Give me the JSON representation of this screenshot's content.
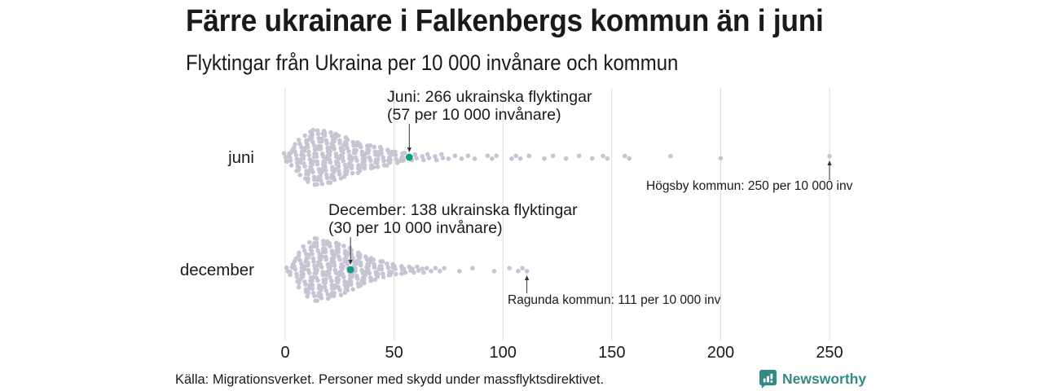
{
  "title": "Färre ukrainare i Falkenbergs kommun än i juni",
  "subtitle": "Flyktingar från Ukraina per 10 000 invånare och kommun",
  "source": "Källa: Migrationsverket. Personer med skydd under massflyktsdirektivet.",
  "brand": {
    "name": "Newsworthy",
    "color": "#338a85"
  },
  "colors": {
    "dot": "#c7c4d4",
    "highlight": "#0e9c85",
    "grid": "#d9d9d9",
    "text": "#1a1a1a",
    "arrow": "#333333"
  },
  "chart_data": {
    "type": "beeswarm",
    "xlabel": "",
    "unit": "flyktingar per 10 000 invånare",
    "xlim": [
      0,
      250
    ],
    "x_ticks": [
      0,
      50,
      100,
      150,
      200,
      250
    ],
    "rows": [
      {
        "label": "juni",
        "highlight": {
          "kommun": "Falkenberg",
          "value": 57
        },
        "distribution": [
          [
            0,
            3
          ],
          [
            1,
            3
          ],
          [
            3,
            5
          ],
          [
            5,
            8
          ],
          [
            7,
            10
          ],
          [
            9,
            12
          ],
          [
            11,
            14
          ],
          [
            13,
            15
          ],
          [
            15,
            15
          ],
          [
            17,
            15
          ],
          [
            19,
            14
          ],
          [
            21,
            14
          ],
          [
            23,
            13
          ],
          [
            25,
            12
          ],
          [
            27,
            11
          ],
          [
            29,
            10
          ],
          [
            31,
            9
          ],
          [
            33,
            9
          ],
          [
            35,
            8
          ],
          [
            37,
            7
          ],
          [
            39,
            7
          ],
          [
            41,
            6
          ],
          [
            43,
            6
          ],
          [
            45,
            5
          ],
          [
            47,
            5
          ],
          [
            49,
            4
          ],
          [
            51,
            4
          ],
          [
            53,
            3
          ],
          [
            55,
            3
          ],
          [
            58,
            2
          ],
          [
            60,
            2
          ],
          [
            63,
            2
          ],
          [
            66,
            2
          ],
          [
            69,
            2
          ],
          [
            72,
            2
          ],
          [
            75,
            1
          ],
          [
            78,
            1
          ],
          [
            81,
            1
          ],
          [
            84,
            1
          ],
          [
            87,
            1
          ],
          [
            93,
            1
          ],
          [
            95,
            1
          ],
          [
            97,
            1
          ],
          [
            104,
            1
          ],
          [
            106,
            1
          ],
          [
            108,
            1
          ],
          [
            112,
            1
          ],
          [
            119,
            1
          ],
          [
            123,
            1
          ],
          [
            129,
            1
          ],
          [
            135,
            1
          ],
          [
            141,
            1
          ],
          [
            146,
            1
          ],
          [
            148,
            1
          ],
          [
            156,
            1
          ],
          [
            158,
            1
          ],
          [
            177,
            1
          ],
          [
            200,
            1
          ],
          [
            250,
            1
          ]
        ]
      },
      {
        "label": "december",
        "highlight": {
          "kommun": "Falkenberg",
          "value": 30
        },
        "distribution": [
          [
            1,
            2
          ],
          [
            3,
            4
          ],
          [
            5,
            7
          ],
          [
            7,
            10
          ],
          [
            9,
            13
          ],
          [
            11,
            15
          ],
          [
            13,
            17
          ],
          [
            15,
            17
          ],
          [
            17,
            16
          ],
          [
            19,
            16
          ],
          [
            21,
            15
          ],
          [
            23,
            15
          ],
          [
            25,
            14
          ],
          [
            27,
            13
          ],
          [
            29,
            12
          ],
          [
            31,
            11
          ],
          [
            33,
            10
          ],
          [
            35,
            9
          ],
          [
            37,
            8
          ],
          [
            39,
            7
          ],
          [
            41,
            6
          ],
          [
            43,
            5
          ],
          [
            45,
            5
          ],
          [
            47,
            4
          ],
          [
            49,
            4
          ],
          [
            51,
            3
          ],
          [
            53,
            3
          ],
          [
            55,
            2
          ],
          [
            57,
            2
          ],
          [
            59,
            2
          ],
          [
            61,
            2
          ],
          [
            63,
            2
          ],
          [
            65,
            1
          ],
          [
            67,
            1
          ],
          [
            69,
            1
          ],
          [
            71,
            1
          ],
          [
            73,
            1
          ],
          [
            80,
            1
          ],
          [
            86,
            1
          ],
          [
            96,
            1
          ],
          [
            103,
            1
          ],
          [
            107,
            1
          ],
          [
            109,
            1
          ],
          [
            111,
            1
          ]
        ]
      }
    ],
    "annotations": [
      {
        "row": "juni",
        "lines": [
          "Juni: 266 ukrainska flyktingar",
          "(57 per 10 000 invånare)"
        ],
        "points_to": 57
      },
      {
        "row": "juni",
        "text": "Högsby kommun: 250 per 10 000 inv",
        "points_to": 250
      },
      {
        "row": "december",
        "lines": [
          "December: 138 ukrainska flyktingar",
          "(30 per 10 000 invånare)"
        ],
        "points_to": 30
      },
      {
        "row": "december",
        "text": "Ragunda kommun: 111 per 10 000 inv",
        "points_to": 111
      }
    ]
  }
}
